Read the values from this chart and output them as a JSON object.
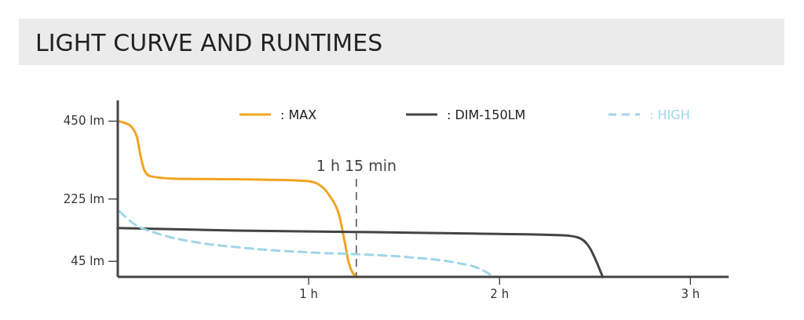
{
  "chart_data": {
    "type": "line",
    "title": "LIGHT CURVE AND RUNTIMES",
    "xlim": [
      0,
      3.2
    ],
    "ylim": [
      0,
      510
    ],
    "xticks": [
      {
        "value": 1,
        "label": "1 h"
      },
      {
        "value": 2,
        "label": "2 h"
      },
      {
        "value": 3,
        "label": "3 h"
      }
    ],
    "yticks": [
      {
        "value": 45,
        "label": "45 lm"
      },
      {
        "value": 225,
        "label": "225 lm"
      },
      {
        "value": 450,
        "label": "450 lm"
      }
    ],
    "legend": "top",
    "grid": false,
    "ref_lines": [
      {
        "axis": "x",
        "value": 1.25,
        "label": "1 h 15 min",
        "line_style": "dashed",
        "color": "#333333"
      }
    ],
    "series": [
      {
        "name": ": MAX",
        "color": "#f0a520",
        "line_style": "solid",
        "x": [
          0,
          0.06,
          0.1,
          0.12,
          0.14,
          0.17,
          0.29,
          0.62,
          0.99,
          1.05,
          1.11,
          1.16,
          1.19,
          1.21,
          1.25
        ],
        "values": [
          450,
          439,
          405,
          348,
          307,
          291,
          284,
          282,
          277,
          268,
          234,
          177,
          98,
          41,
          0
        ]
      },
      {
        "name": ": DIM-150LM",
        "color": "#444444",
        "line_style": "solid",
        "x": [
          0,
          0.62,
          1.23,
          1.85,
          2.33,
          2.41,
          2.47,
          2.51,
          2.54
        ],
        "values": [
          141,
          134,
          130,
          125,
          120,
          114,
          86,
          41,
          0
        ]
      },
      {
        "name": ": HIGH",
        "color": "#9fd6e8",
        "line_style": "dashed",
        "x": [
          0.01,
          0.08,
          0.21,
          0.41,
          0.62,
          1.03,
          1.23,
          1.52,
          1.77,
          1.89,
          1.95
        ],
        "values": [
          189,
          155,
          125,
          100,
          86,
          70,
          66,
          57,
          41,
          25,
          7
        ]
      }
    ]
  }
}
